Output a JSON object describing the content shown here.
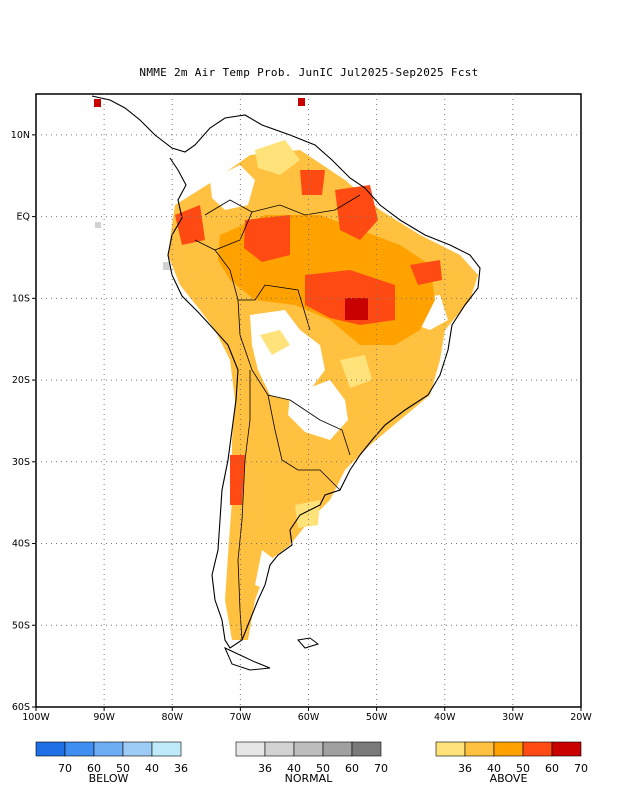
{
  "title": "NMME 2m Air Temp Prob. JunIC  Jul2025-Sep2025 Fcst",
  "map": {
    "lat_labels": [
      "10N",
      "EQ",
      "10S",
      "20S",
      "30S",
      "40S",
      "50S",
      "60S"
    ],
    "lon_labels": [
      "100W",
      "90W",
      "80W",
      "70W",
      "60W",
      "50W",
      "40W",
      "30W",
      "20W"
    ],
    "lat_range": [
      -60,
      15
    ],
    "lon_range": [
      -100,
      -20
    ],
    "grid": "dotted"
  },
  "legend": {
    "below": {
      "label": "BELOW",
      "ticks": [
        "70",
        "60",
        "50",
        "40",
        "36"
      ],
      "colors": [
        "#1f6fe6",
        "#3d8ef0",
        "#6eaef5",
        "#9dcdf7",
        "#bfeaf9"
      ]
    },
    "normal": {
      "label": "NORMAL",
      "ticks": [
        "36",
        "40",
        "50",
        "60",
        "70"
      ],
      "colors": [
        "#e6e6e6",
        "#d2d2d2",
        "#bdbdbd",
        "#a0a0a0",
        "#7a7a7a"
      ]
    },
    "above": {
      "label": "ABOVE",
      "ticks": [
        "36",
        "40",
        "50",
        "60",
        "70"
      ],
      "colors": [
        "#ffe37a",
        "#ffc13f",
        "#ffa200",
        "#ff4a14",
        "#c80000"
      ]
    }
  }
}
